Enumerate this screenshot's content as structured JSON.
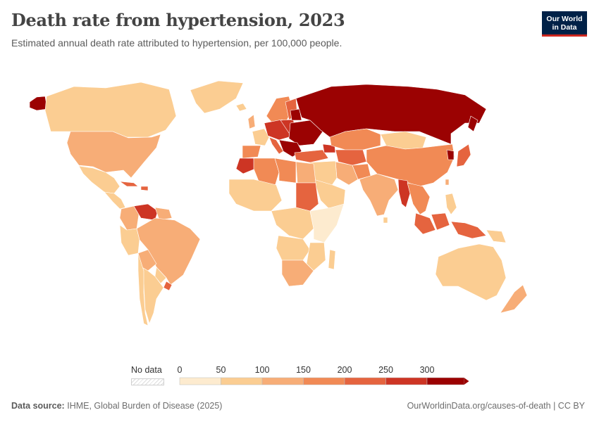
{
  "header": {
    "title": "Death rate from hypertension, 2023",
    "subtitle": "Estimated annual death rate attributed to hypertension, per 100,000 people."
  },
  "logo": {
    "line1": "Our World",
    "line2": "in Data",
    "bg_color": "#002147",
    "accent_color": "#ce261e"
  },
  "legend": {
    "no_data_label": "No data",
    "ticks": [
      "0",
      "50",
      "100",
      "150",
      "200",
      "250",
      "300"
    ],
    "bins": [
      {
        "min": 0,
        "max": 50,
        "color": "#fdebcf"
      },
      {
        "min": 50,
        "max": 100,
        "color": "#fbcd92"
      },
      {
        "min": 100,
        "max": 150,
        "color": "#f7ad77"
      },
      {
        "min": 150,
        "max": 200,
        "color": "#f18a55"
      },
      {
        "min": 200,
        "max": 250,
        "color": "#e5643f"
      },
      {
        "min": 250,
        "max": 300,
        "color": "#cd3524"
      },
      {
        "min": 300,
        "max": null,
        "color": "#9b0202"
      }
    ]
  },
  "footer": {
    "source_label": "Data source:",
    "source_text": "IHME, Global Burden of Disease (2025)",
    "url": "OurWorldinData.org/causes-of-death | CC BY"
  }
}
